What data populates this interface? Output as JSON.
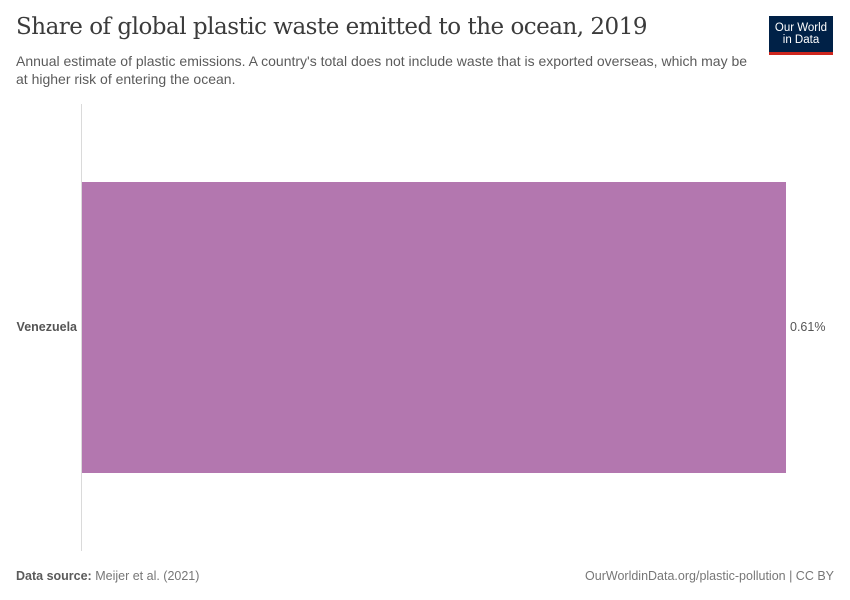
{
  "header": {
    "title": "Share of global plastic waste emitted to the ocean, 2019",
    "subtitle": "Annual estimate of plastic emissions. A country's total does not include waste that is exported overseas, which may be at higher risk of entering the ocean.",
    "logo_line1": "Our World",
    "logo_line2": "in Data"
  },
  "footer": {
    "source_label": "Data source:",
    "source_value": " Meijer et al. (2021)",
    "url_license": "OurWorldinData.org/plastic-pollution | CC BY"
  },
  "colors": {
    "bar": "#b377af",
    "logo_bg": "#002147",
    "logo_accent": "#ce261e"
  },
  "chart_data": {
    "type": "bar",
    "orientation": "horizontal",
    "title": "Share of global plastic waste emitted to the ocean, 2019",
    "subtitle": "Annual estimate of plastic emissions. A country's total does not include waste that is exported overseas, which may be at higher risk of entering the ocean.",
    "categories": [
      "Venezuela"
    ],
    "values": [
      0.61
    ],
    "value_labels": [
      "0.61%"
    ],
    "unit": "%",
    "xlabel": "",
    "ylabel": "",
    "xlim": [
      0,
      0.61
    ],
    "grid": false,
    "legend": null
  }
}
